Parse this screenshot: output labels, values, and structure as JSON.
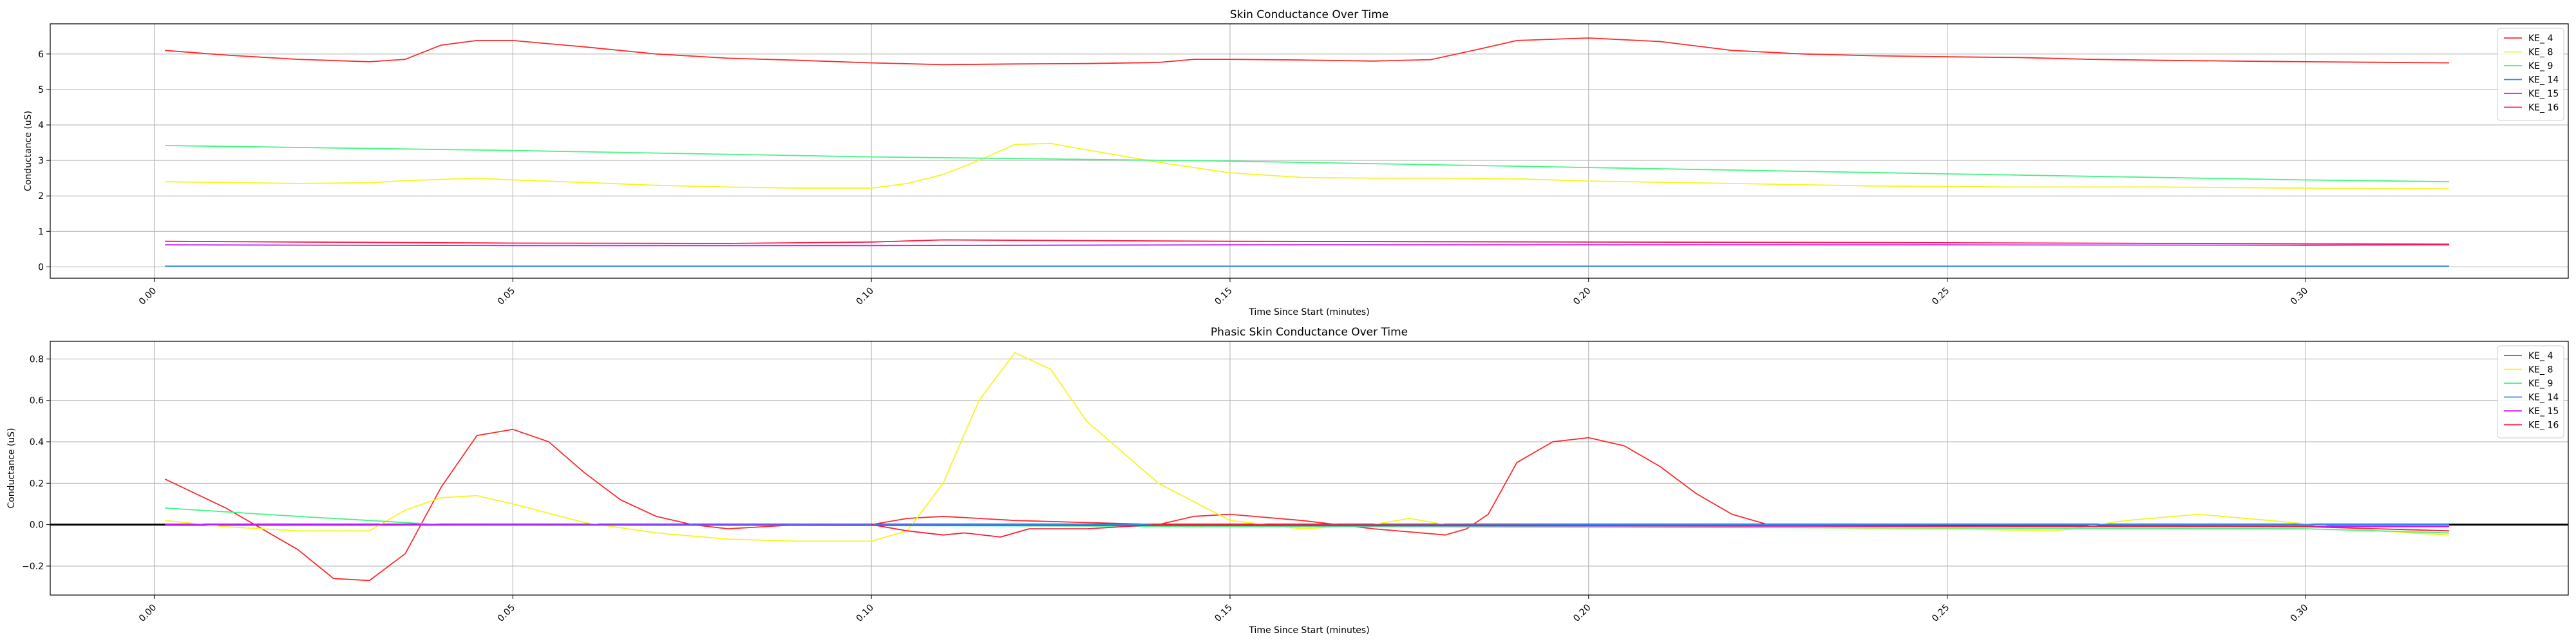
{
  "chart_data": [
    {
      "type": "line",
      "title": "Skin Conductance Over Time",
      "xlabel": "Time Since Start (minutes)",
      "ylabel": "Conductance (uS)",
      "xlim": [
        -0.0145,
        0.3366
      ],
      "ylim": [
        -0.32,
        6.85
      ],
      "xticks": [
        "0.00",
        "0.05",
        "0.10",
        "0.15",
        "0.20",
        "0.25",
        "0.30"
      ],
      "xtick_values": [
        0,
        0.05,
        0.1,
        0.15,
        0.2,
        0.25,
        0.3
      ],
      "yticks": [
        "0",
        "1",
        "2",
        "3",
        "4",
        "5",
        "6"
      ],
      "ytick_values": [
        0,
        1,
        2,
        3,
        4,
        5,
        6
      ],
      "grid": true,
      "zero_line": false,
      "legend_position": "top-right",
      "series": [
        {
          "name": "KE_ 4",
          "color": "#ff2a2a",
          "points": [
            [
              0.0015,
              6.1
            ],
            [
              0.01,
              5.97
            ],
            [
              0.02,
              5.85
            ],
            [
              0.03,
              5.78
            ],
            [
              0.035,
              5.85
            ],
            [
              0.04,
              6.25
            ],
            [
              0.045,
              6.38
            ],
            [
              0.05,
              6.38
            ],
            [
              0.06,
              6.2
            ],
            [
              0.07,
              6.0
            ],
            [
              0.08,
              5.88
            ],
            [
              0.09,
              5.82
            ],
            [
              0.1,
              5.75
            ],
            [
              0.11,
              5.7
            ],
            [
              0.12,
              5.72
            ],
            [
              0.13,
              5.73
            ],
            [
              0.14,
              5.76
            ],
            [
              0.145,
              5.85
            ],
            [
              0.15,
              5.85
            ],
            [
              0.16,
              5.83
            ],
            [
              0.17,
              5.8
            ],
            [
              0.178,
              5.84
            ],
            [
              0.185,
              6.15
            ],
            [
              0.19,
              6.38
            ],
            [
              0.2,
              6.45
            ],
            [
              0.21,
              6.35
            ],
            [
              0.22,
              6.1
            ],
            [
              0.23,
              6.0
            ],
            [
              0.24,
              5.95
            ],
            [
              0.25,
              5.92
            ],
            [
              0.26,
              5.9
            ],
            [
              0.27,
              5.85
            ],
            [
              0.28,
              5.82
            ],
            [
              0.29,
              5.8
            ],
            [
              0.3,
              5.78
            ],
            [
              0.32,
              5.75
            ]
          ]
        },
        {
          "name": "KE_ 8",
          "color": "#f5f51f",
          "points": [
            [
              0.0015,
              2.4
            ],
            [
              0.01,
              2.38
            ],
            [
              0.02,
              2.35
            ],
            [
              0.03,
              2.37
            ],
            [
              0.035,
              2.43
            ],
            [
              0.045,
              2.5
            ],
            [
              0.05,
              2.45
            ],
            [
              0.06,
              2.38
            ],
            [
              0.07,
              2.3
            ],
            [
              0.08,
              2.25
            ],
            [
              0.09,
              2.22
            ],
            [
              0.1,
              2.22
            ],
            [
              0.105,
              2.35
            ],
            [
              0.11,
              2.6
            ],
            [
              0.115,
              3.0
            ],
            [
              0.12,
              3.45
            ],
            [
              0.125,
              3.48
            ],
            [
              0.13,
              3.3
            ],
            [
              0.14,
              2.95
            ],
            [
              0.15,
              2.65
            ],
            [
              0.16,
              2.52
            ],
            [
              0.17,
              2.5
            ],
            [
              0.18,
              2.5
            ],
            [
              0.19,
              2.48
            ],
            [
              0.2,
              2.42
            ],
            [
              0.22,
              2.35
            ],
            [
              0.24,
              2.28
            ],
            [
              0.26,
              2.25
            ],
            [
              0.28,
              2.25
            ],
            [
              0.3,
              2.22
            ],
            [
              0.32,
              2.2
            ]
          ]
        },
        {
          "name": "KE_ 9",
          "color": "#40f580",
          "points": [
            [
              0.0015,
              3.42
            ],
            [
              0.05,
              3.28
            ],
            [
              0.1,
              3.1
            ],
            [
              0.15,
              2.98
            ],
            [
              0.2,
              2.8
            ],
            [
              0.25,
              2.62
            ],
            [
              0.3,
              2.45
            ],
            [
              0.32,
              2.4
            ]
          ]
        },
        {
          "name": "KE_ 14",
          "color": "#2f8cf5",
          "points": [
            [
              0.0015,
              0.02
            ],
            [
              0.32,
              0.02
            ]
          ]
        },
        {
          "name": "KE_ 15",
          "color": "#c418ff",
          "points": [
            [
              0.0015,
              0.62
            ],
            [
              0.05,
              0.6
            ],
            [
              0.1,
              0.6
            ],
            [
              0.15,
              0.62
            ],
            [
              0.2,
              0.62
            ],
            [
              0.25,
              0.62
            ],
            [
              0.3,
              0.61
            ],
            [
              0.32,
              0.62
            ]
          ]
        },
        {
          "name": "KE_ 16",
          "color": "#ff1a3c",
          "points": [
            [
              0.0015,
              0.72
            ],
            [
              0.02,
              0.7
            ],
            [
              0.05,
              0.67
            ],
            [
              0.08,
              0.66
            ],
            [
              0.1,
              0.7
            ],
            [
              0.11,
              0.76
            ],
            [
              0.13,
              0.74
            ],
            [
              0.15,
              0.72
            ],
            [
              0.2,
              0.7
            ],
            [
              0.25,
              0.68
            ],
            [
              0.3,
              0.65
            ],
            [
              0.32,
              0.64
            ]
          ]
        }
      ]
    },
    {
      "type": "line",
      "title": "Phasic Skin Conductance Over Time",
      "xlabel": "Time Since Start (minutes)",
      "ylabel": "Conductance (uS)",
      "xlim": [
        -0.0145,
        0.3366
      ],
      "ylim": [
        -0.34,
        0.885
      ],
      "xticks": [
        "0.00",
        "0.05",
        "0.10",
        "0.15",
        "0.20",
        "0.25",
        "0.30"
      ],
      "xtick_values": [
        0,
        0.05,
        0.1,
        0.15,
        0.2,
        0.25,
        0.3
      ],
      "yticks": [
        "−0.2",
        "0.0",
        "0.2",
        "0.4",
        "0.6",
        "0.8"
      ],
      "ytick_values": [
        -0.2,
        0,
        0.2,
        0.4,
        0.6,
        0.8
      ],
      "grid": true,
      "zero_line": true,
      "legend_position": "top-right",
      "series": [
        {
          "name": "KE_ 4",
          "color": "#ff2a2a",
          "points": [
            [
              0.0015,
              0.22
            ],
            [
              0.01,
              0.08
            ],
            [
              0.02,
              -0.12
            ],
            [
              0.025,
              -0.26
            ],
            [
              0.03,
              -0.27
            ],
            [
              0.035,
              -0.14
            ],
            [
              0.04,
              0.18
            ],
            [
              0.045,
              0.43
            ],
            [
              0.05,
              0.46
            ],
            [
              0.055,
              0.4
            ],
            [
              0.06,
              0.25
            ],
            [
              0.065,
              0.12
            ],
            [
              0.07,
              0.04
            ],
            [
              0.075,
              0
            ],
            [
              0.08,
              -0.02
            ],
            [
              0.09,
              0
            ],
            [
              0.1,
              0
            ],
            [
              0.105,
              0.03
            ],
            [
              0.11,
              0.04
            ],
            [
              0.12,
              0.02
            ],
            [
              0.13,
              0.01
            ],
            [
              0.14,
              0
            ],
            [
              0.145,
              0.04
            ],
            [
              0.15,
              0.05
            ],
            [
              0.16,
              0.02
            ],
            [
              0.17,
              -0.02
            ],
            [
              0.18,
              -0.05
            ],
            [
              0.183,
              -0.02
            ],
            [
              0.186,
              0.05
            ],
            [
              0.19,
              0.3
            ],
            [
              0.195,
              0.4
            ],
            [
              0.2,
              0.42
            ],
            [
              0.205,
              0.38
            ],
            [
              0.21,
              0.28
            ],
            [
              0.215,
              0.15
            ],
            [
              0.22,
              0.05
            ],
            [
              0.225,
              0
            ]
          ]
        },
        {
          "name": "KE_ 8",
          "color": "#f5f51f",
          "points": [
            [
              0.0015,
              0.02
            ],
            [
              0.01,
              -0.01
            ],
            [
              0.02,
              -0.03
            ],
            [
              0.03,
              -0.03
            ],
            [
              0.035,
              0.07
            ],
            [
              0.04,
              0.13
            ],
            [
              0.045,
              0.14
            ],
            [
              0.05,
              0.1
            ],
            [
              0.06,
              0.01
            ],
            [
              0.07,
              -0.04
            ],
            [
              0.08,
              -0.07
            ],
            [
              0.09,
              -0.08
            ],
            [
              0.1,
              -0.08
            ],
            [
              0.105,
              -0.03
            ],
            [
              0.11,
              0.2
            ],
            [
              0.115,
              0.6
            ],
            [
              0.12,
              0.83
            ],
            [
              0.125,
              0.75
            ],
            [
              0.13,
              0.5
            ],
            [
              0.14,
              0.2
            ],
            [
              0.15,
              0.02
            ],
            [
              0.16,
              -0.02
            ],
            [
              0.17,
              0
            ],
            [
              0.175,
              0.03
            ],
            [
              0.18,
              0
            ],
            [
              0.25,
              -0.02
            ],
            [
              0.265,
              -0.03
            ],
            [
              0.275,
              0.02
            ],
            [
              0.285,
              0.05
            ],
            [
              0.295,
              0.02
            ],
            [
              0.31,
              -0.03
            ],
            [
              0.32,
              -0.05
            ]
          ]
        },
        {
          "name": "KE_ 9",
          "color": "#40f580",
          "points": [
            [
              0.0015,
              0.08
            ],
            [
              0.02,
              0.04
            ],
            [
              0.03,
              0.02
            ],
            [
              0.04,
              0
            ],
            [
              0.3,
              -0.02
            ],
            [
              0.32,
              -0.04
            ]
          ]
        },
        {
          "name": "KE_ 14",
          "color": "#2f8cf5",
          "points": [
            [
              0.0015,
              0
            ],
            [
              0.32,
              0
            ]
          ]
        },
        {
          "name": "KE_ 15",
          "color": "#c418ff",
          "points": [
            [
              0.0015,
              0
            ],
            [
              0.32,
              -0.01
            ]
          ]
        },
        {
          "name": "KE_ 16",
          "color": "#ff1a3c",
          "points": [
            [
              0.1,
              0
            ],
            [
              0.105,
              -0.03
            ],
            [
              0.11,
              -0.05
            ],
            [
              0.113,
              -0.04
            ],
            [
              0.118,
              -0.06
            ],
            [
              0.122,
              -0.02
            ],
            [
              0.13,
              -0.02
            ],
            [
              0.135,
              -0.01
            ],
            [
              0.14,
              0
            ],
            [
              0.3,
              -0.01
            ],
            [
              0.32,
              -0.03
            ]
          ]
        }
      ]
    }
  ]
}
